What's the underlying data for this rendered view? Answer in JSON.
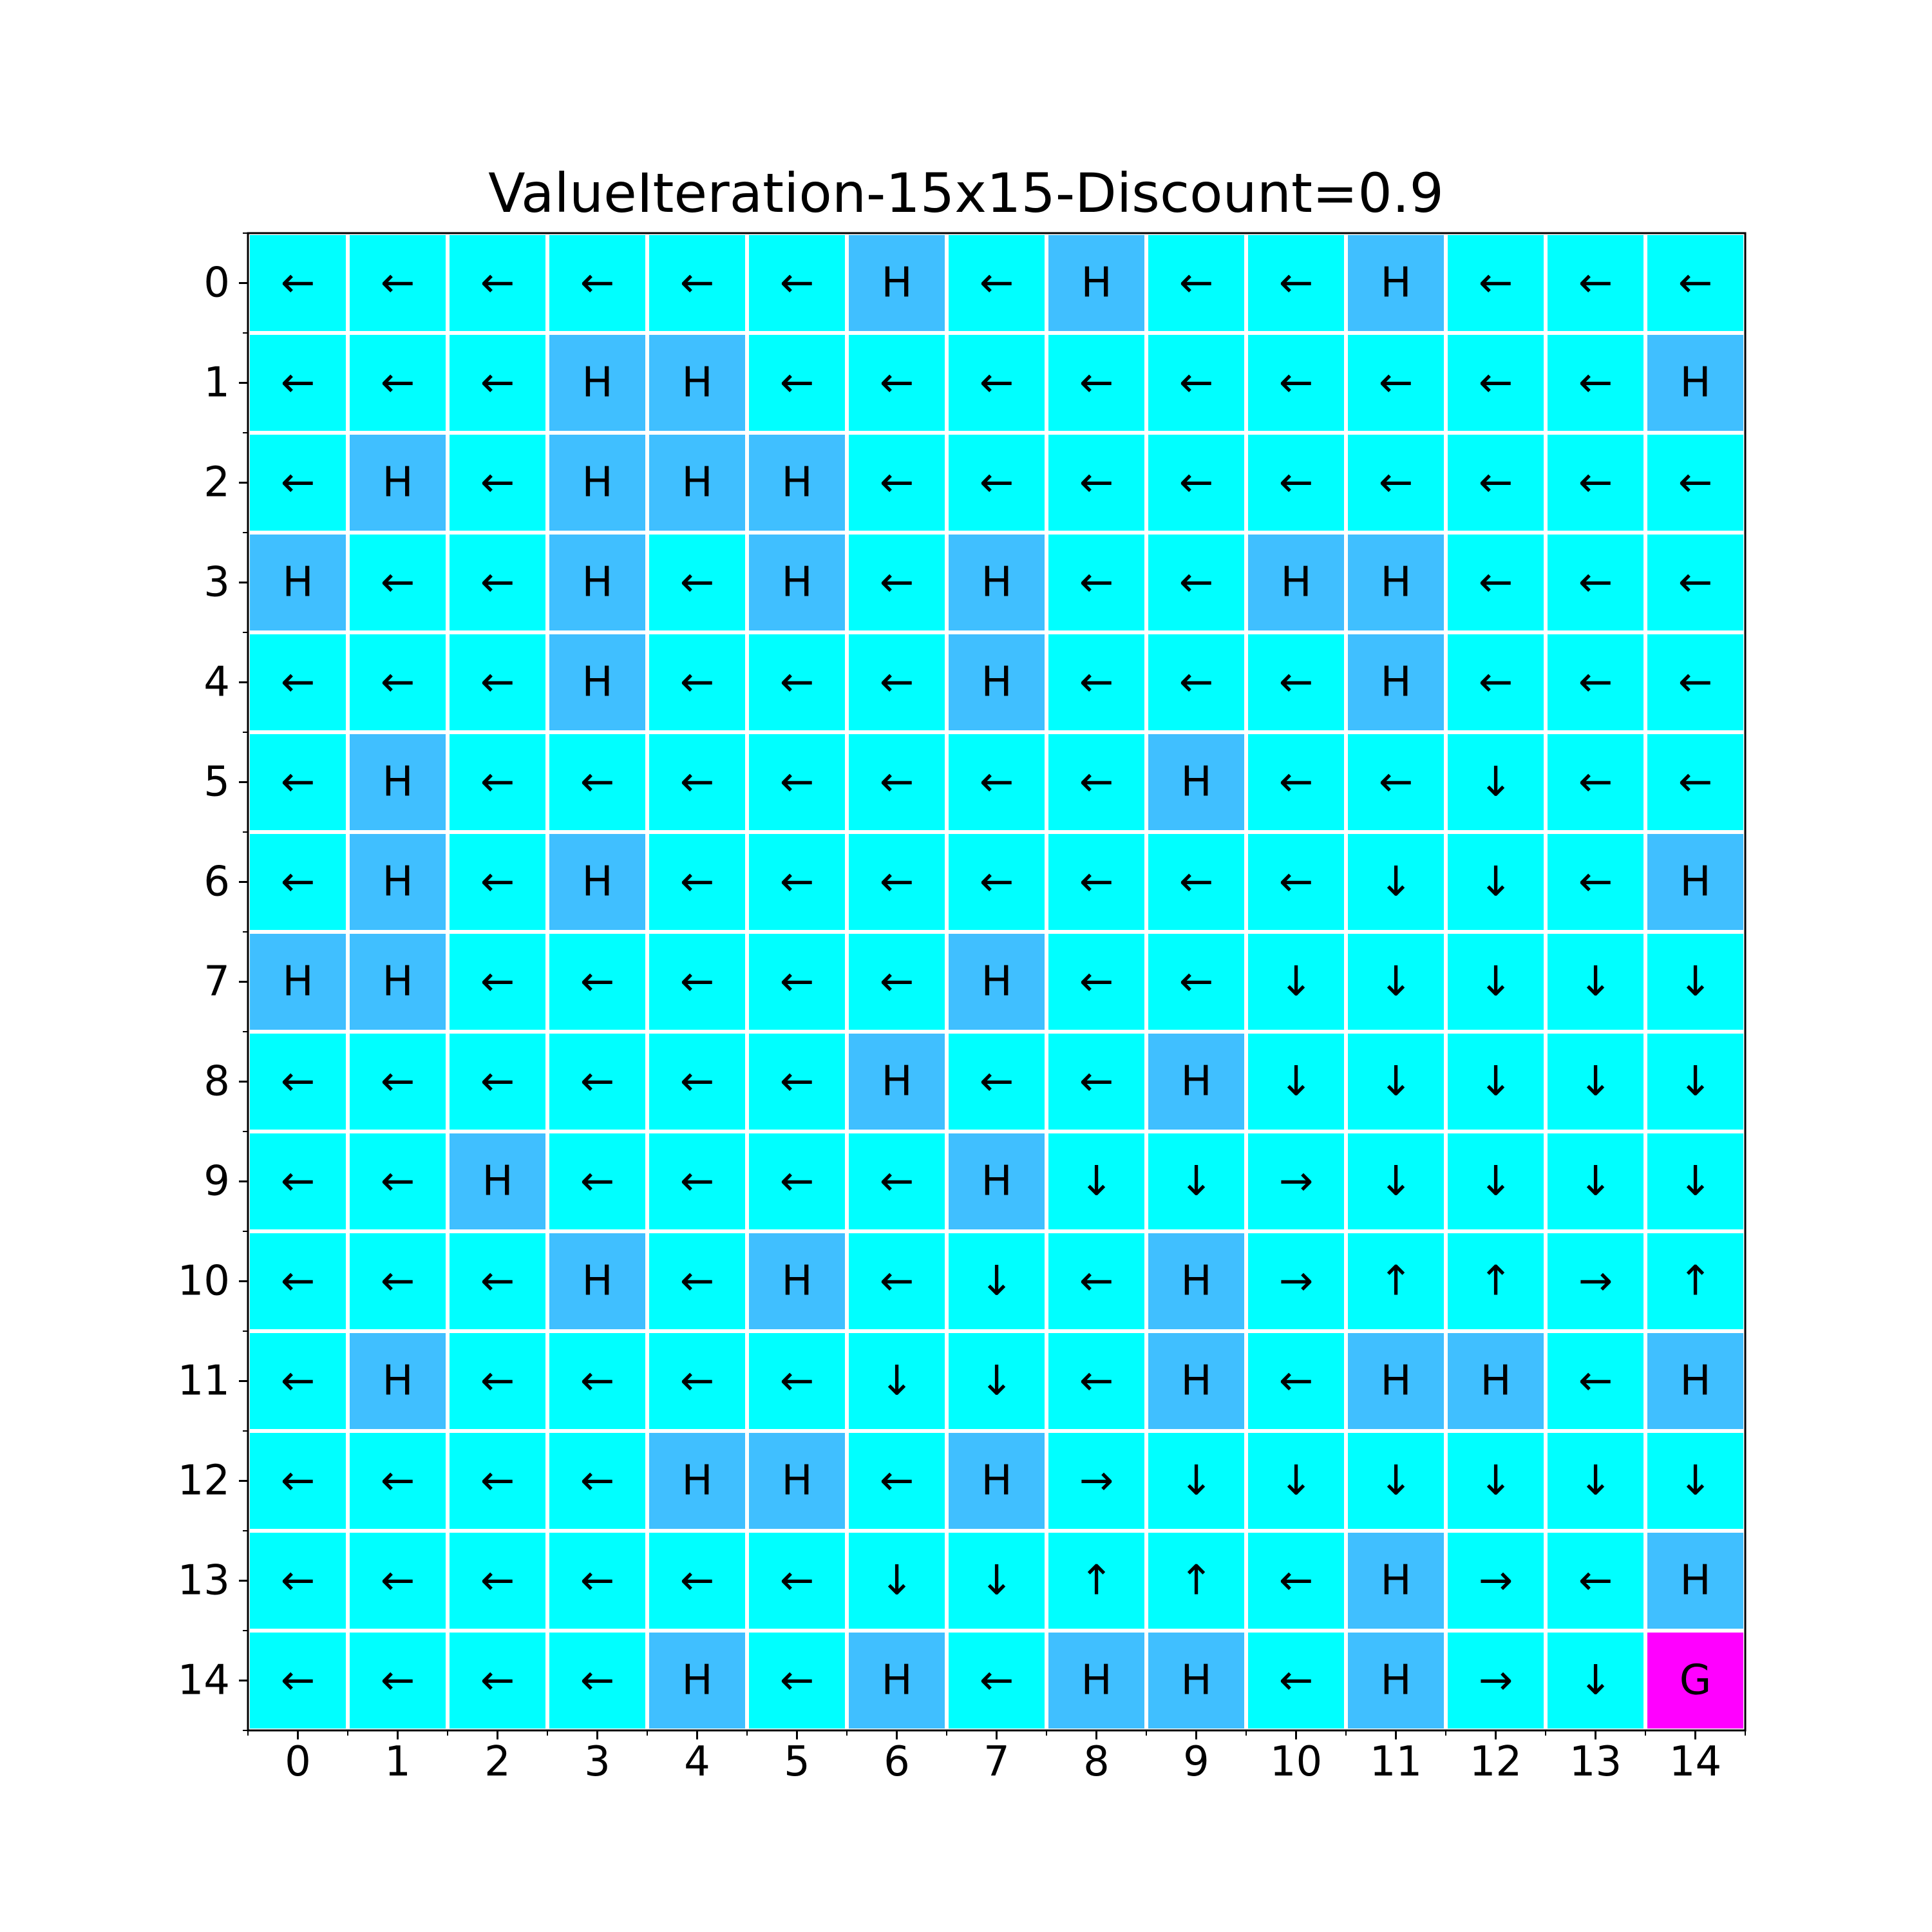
{
  "chart_data": {
    "type": "heatmap",
    "title": "ValueIteration-15x15-Discount=0.9",
    "xlabel": "",
    "ylabel": "",
    "x_ticks": [
      "0",
      "1",
      "2",
      "3",
      "4",
      "5",
      "6",
      "7",
      "8",
      "9",
      "10",
      "11",
      "12",
      "13",
      "14"
    ],
    "y_ticks": [
      "0",
      "1",
      "2",
      "3",
      "4",
      "5",
      "6",
      "7",
      "8",
      "9",
      "10",
      "11",
      "12",
      "13",
      "14"
    ],
    "colors": {
      "frozen": "#00ffff",
      "hole": "#40bfff",
      "goal": "#ff00ff",
      "grid_lines": "#ffffff"
    },
    "cell_legend": {
      "H": "hole",
      "G": "goal",
      "arrow": "frozen"
    },
    "grid": [
      [
        "←",
        "←",
        "←",
        "←",
        "←",
        "←",
        "H",
        "←",
        "H",
        "←",
        "←",
        "H",
        "←",
        "←",
        "←"
      ],
      [
        "←",
        "←",
        "←",
        "H",
        "H",
        "←",
        "←",
        "←",
        "←",
        "←",
        "←",
        "←",
        "←",
        "←",
        "H"
      ],
      [
        "←",
        "H",
        "←",
        "H",
        "H",
        "H",
        "←",
        "←",
        "←",
        "←",
        "←",
        "←",
        "←",
        "←",
        "←"
      ],
      [
        "H",
        "←",
        "←",
        "H",
        "←",
        "H",
        "←",
        "H",
        "←",
        "←",
        "H",
        "H",
        "←",
        "←",
        "←"
      ],
      [
        "←",
        "←",
        "←",
        "H",
        "←",
        "←",
        "←",
        "H",
        "←",
        "←",
        "←",
        "H",
        "←",
        "←",
        "←"
      ],
      [
        "←",
        "H",
        "←",
        "←",
        "←",
        "←",
        "←",
        "←",
        "←",
        "H",
        "←",
        "←",
        "↓",
        "←",
        "←"
      ],
      [
        "←",
        "H",
        "←",
        "H",
        "←",
        "←",
        "←",
        "←",
        "←",
        "←",
        "←",
        "↓",
        "↓",
        "←",
        "H"
      ],
      [
        "H",
        "H",
        "←",
        "←",
        "←",
        "←",
        "←",
        "H",
        "←",
        "←",
        "↓",
        "↓",
        "↓",
        "↓",
        "↓"
      ],
      [
        "←",
        "←",
        "←",
        "←",
        "←",
        "←",
        "H",
        "←",
        "←",
        "H",
        "↓",
        "↓",
        "↓",
        "↓",
        "↓"
      ],
      [
        "←",
        "←",
        "H",
        "←",
        "←",
        "←",
        "←",
        "H",
        "↓",
        "↓",
        "→",
        "↓",
        "↓",
        "↓",
        "↓"
      ],
      [
        "←",
        "←",
        "←",
        "H",
        "←",
        "H",
        "←",
        "↓",
        "←",
        "H",
        "→",
        "↑",
        "↑",
        "→",
        "↑"
      ],
      [
        "←",
        "H",
        "←",
        "←",
        "←",
        "←",
        "↓",
        "↓",
        "←",
        "H",
        "←",
        "H",
        "H",
        "←",
        "H"
      ],
      [
        "←",
        "←",
        "←",
        "←",
        "H",
        "H",
        "←",
        "H",
        "→",
        "↓",
        "↓",
        "↓",
        "↓",
        "↓",
        "↓"
      ],
      [
        "←",
        "←",
        "←",
        "←",
        "←",
        "←",
        "↓",
        "↓",
        "↑",
        "↑",
        "←",
        "H",
        "→",
        "←",
        "H"
      ],
      [
        "←",
        "←",
        "←",
        "←",
        "H",
        "←",
        "H",
        "←",
        "H",
        "H",
        "←",
        "H",
        "→",
        "↓",
        "G"
      ]
    ]
  }
}
